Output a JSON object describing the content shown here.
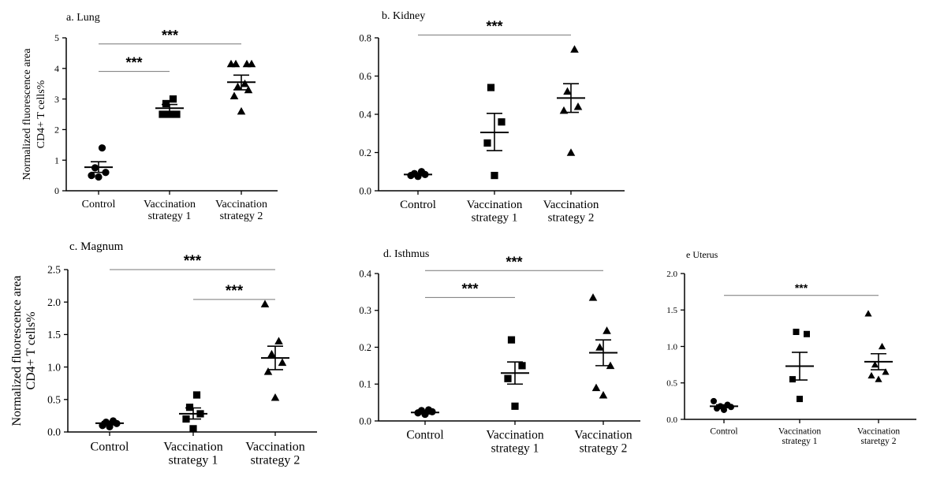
{
  "figure": {
    "shared_ylabel_lines": [
      "Normalized fluorescence area",
      "CD4+ T cells%"
    ]
  },
  "chart_data": [
    {
      "id": "a",
      "type": "scatter",
      "title": "a. Lung",
      "ylabel_lines": [
        "Normalized fluorescence area",
        "CD4+ T cells%"
      ],
      "ylim": [
        0,
        5
      ],
      "yticks": [
        "0",
        "1",
        "2",
        "3",
        "4",
        "5"
      ],
      "groups": [
        {
          "label_lines": [
            "Control"
          ],
          "marker": "circle",
          "points": [
            0.45,
            0.5,
            0.6,
            0.75,
            1.4
          ],
          "mean": 0.77,
          "sem_low": 0.6,
          "sem_high": 0.95
        },
        {
          "label_lines": [
            "Vaccination",
            "strategy 1"
          ],
          "marker": "square",
          "points": [
            2.5,
            2.5,
            2.5,
            2.85,
            3.0
          ],
          "mean": 2.7,
          "sem_low": 2.58,
          "sem_high": 2.82
        },
        {
          "label_lines": [
            "Vaccination",
            "strategy 2"
          ],
          "marker": "triangle",
          "points": [
            2.6,
            3.1,
            3.3,
            3.4,
            3.5,
            4.15,
            4.15,
            4.15,
            4.15
          ],
          "mean": 3.55,
          "sem_low": 3.3,
          "sem_high": 3.78
        }
      ],
      "brackets": [
        {
          "from": 0,
          "to": 1,
          "y": 3.9,
          "label": "***"
        },
        {
          "from": 0,
          "to": 2,
          "y": 4.8,
          "label": "***"
        }
      ]
    },
    {
      "id": "b",
      "type": "scatter",
      "title": "b. Kidney",
      "ylim": [
        0,
        0.8
      ],
      "yticks": [
        "0.0",
        "0.2",
        "0.4",
        "0.6",
        "0.8"
      ],
      "groups": [
        {
          "label_lines": [
            "Control"
          ],
          "marker": "circle",
          "points": [
            0.075,
            0.08,
            0.085,
            0.09,
            0.1
          ],
          "mean": 0.085,
          "sem_low": 0.08,
          "sem_high": 0.09
        },
        {
          "label_lines": [
            "Vaccination",
            "strategy 1"
          ],
          "marker": "square",
          "points": [
            0.08,
            0.25,
            0.36,
            0.54
          ],
          "mean": 0.305,
          "sem_low": 0.21,
          "sem_high": 0.405
        },
        {
          "label_lines": [
            "Vaccination",
            "strategy 2"
          ],
          "marker": "triangle",
          "points": [
            0.2,
            0.42,
            0.44,
            0.52,
            0.74
          ],
          "mean": 0.485,
          "sem_low": 0.41,
          "sem_high": 0.56
        }
      ],
      "brackets": [
        {
          "from": 0,
          "to": 2,
          "y": 0.815,
          "label": "***"
        }
      ]
    },
    {
      "id": "c",
      "type": "scatter",
      "title": "c. Magnum",
      "ylabel_lines": [
        "Normalized fluorescence area",
        "CD4+ T cells%"
      ],
      "ylim": [
        0,
        2.5
      ],
      "yticks": [
        "0.0",
        "0.5",
        "1.0",
        "1.5",
        "2.0",
        "2.5"
      ],
      "groups": [
        {
          "label_lines": [
            "Control"
          ],
          "marker": "circle",
          "points": [
            0.08,
            0.1,
            0.13,
            0.15,
            0.17
          ],
          "mean": 0.135,
          "sem_low": 0.11,
          "sem_high": 0.16
        },
        {
          "label_lines": [
            "Vaccination",
            "strategy 1"
          ],
          "marker": "square",
          "points": [
            0.05,
            0.2,
            0.28,
            0.38,
            0.57
          ],
          "mean": 0.28,
          "sem_low": 0.2,
          "sem_high": 0.37
        },
        {
          "label_lines": [
            "Vaccination",
            "strategy 2"
          ],
          "marker": "triangle",
          "points": [
            0.53,
            0.93,
            1.07,
            1.2,
            1.4,
            1.97
          ],
          "mean": 1.14,
          "sem_low": 0.96,
          "sem_high": 1.32
        }
      ],
      "brackets": [
        {
          "from": 0,
          "to": 2,
          "y": 2.5,
          "label": "***"
        },
        {
          "from": 1,
          "to": 2,
          "y": 2.04,
          "label": "***"
        }
      ]
    },
    {
      "id": "d",
      "type": "scatter",
      "title": "d. Isthmus",
      "ylim": [
        0,
        0.4
      ],
      "yticks": [
        "0.0",
        "0.1",
        "0.2",
        "0.3",
        "0.4"
      ],
      "groups": [
        {
          "label_lines": [
            "Control"
          ],
          "marker": "circle",
          "points": [
            0.018,
            0.022,
            0.025,
            0.028,
            0.03
          ],
          "mean": 0.023,
          "sem_low": 0.019,
          "sem_high": 0.027
        },
        {
          "label_lines": [
            "Vaccination",
            "strategy 1"
          ],
          "marker": "square",
          "points": [
            0.04,
            0.115,
            0.15,
            0.22
          ],
          "mean": 0.13,
          "sem_low": 0.1,
          "sem_high": 0.16
        },
        {
          "label_lines": [
            "Vaccination",
            "strategy 2"
          ],
          "marker": "triangle",
          "points": [
            0.07,
            0.09,
            0.15,
            0.2,
            0.245,
            0.335
          ],
          "mean": 0.185,
          "sem_low": 0.15,
          "sem_high": 0.22
        }
      ],
      "brackets": [
        {
          "from": 0,
          "to": 1,
          "y": 0.335,
          "label": "***"
        },
        {
          "from": 0,
          "to": 2,
          "y": 0.408,
          "label": "***"
        }
      ]
    },
    {
      "id": "e",
      "type": "scatter",
      "title": "e Uterus",
      "ylim": [
        0,
        2.0
      ],
      "yticks": [
        "0.0",
        "0.5",
        "1.0",
        "1.5",
        "2.0"
      ],
      "groups": [
        {
          "label_lines": [
            "Control"
          ],
          "marker": "circle",
          "points": [
            0.13,
            0.15,
            0.17,
            0.18,
            0.2,
            0.25
          ],
          "mean": 0.18,
          "sem_low": 0.16,
          "sem_high": 0.2
        },
        {
          "label_lines": [
            "Vaccination",
            "strategy 1"
          ],
          "marker": "square",
          "points": [
            0.28,
            0.55,
            1.17,
            1.2
          ],
          "mean": 0.73,
          "sem_low": 0.54,
          "sem_high": 0.92
        },
        {
          "label_lines": [
            "Vaccination",
            "staretgy 2"
          ],
          "marker": "triangle",
          "points": [
            0.55,
            0.6,
            0.65,
            0.75,
            1.0,
            1.45
          ],
          "mean": 0.79,
          "sem_low": 0.68,
          "sem_high": 0.9
        }
      ],
      "brackets": [
        {
          "from": 0,
          "to": 2,
          "y": 1.7,
          "label": "***"
        }
      ]
    }
  ]
}
